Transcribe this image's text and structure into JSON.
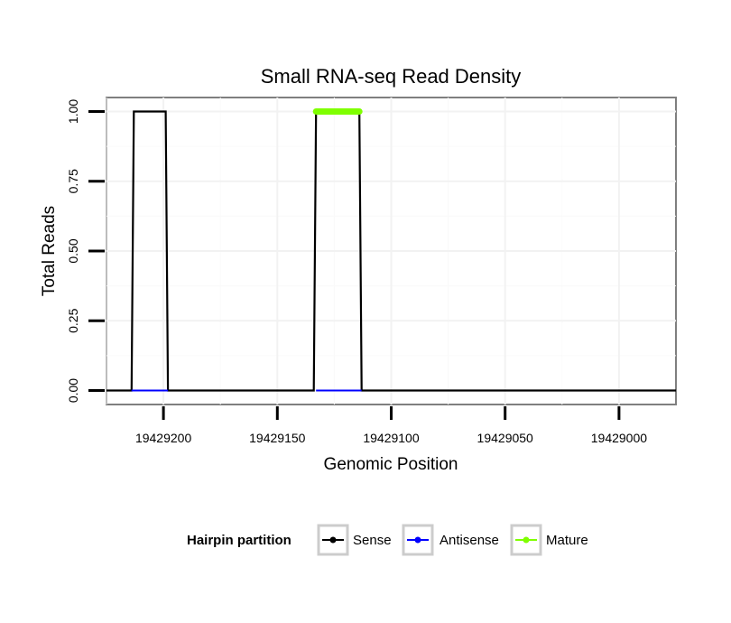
{
  "chart_data": {
    "type": "line",
    "title": "Small RNA-seq Read Density",
    "xlabel": "Genomic Position",
    "ylabel": "Total Reads",
    "x_reversed": true,
    "xlim": [
      19429225,
      19428975
    ],
    "ylim": [
      -0.05,
      1.05
    ],
    "x_ticks": [
      19429200,
      19429150,
      19429100,
      19429050,
      19429000
    ],
    "x_tick_labels": [
      "19429200",
      "19429150",
      "19429100",
      "19429050",
      "19429000"
    ],
    "y_ticks": [
      0,
      0.25,
      0.5,
      0.75,
      1
    ],
    "y_tick_labels": [
      "0.00",
      "0.25",
      "0.50",
      "0.75",
      "1.00"
    ],
    "grid": true,
    "series": [
      {
        "name": "Sense",
        "color": "#000000",
        "points": [
          [
            19429225,
            0
          ],
          [
            19429214,
            0
          ],
          [
            19429213,
            1
          ],
          [
            19429199,
            1
          ],
          [
            19429198,
            0
          ],
          [
            19429134,
            0
          ],
          [
            19429133,
            1
          ],
          [
            19429114,
            1
          ],
          [
            19429113,
            0
          ],
          [
            19428975,
            0
          ]
        ]
      },
      {
        "name": "Antisense",
        "color": "#0000ff",
        "points": [
          [
            19429214,
            0
          ],
          [
            19429198,
            0
          ],
          [
            19429133,
            0
          ],
          [
            19429113,
            0
          ]
        ]
      },
      {
        "name": "Mature",
        "color": "#7fff00",
        "points": [
          [
            19429133,
            1
          ],
          [
            19429114,
            1
          ]
        ]
      }
    ],
    "legend": {
      "title": "Hairpin partition",
      "position": "bottom",
      "entries": [
        "Sense",
        "Antisense",
        "Mature"
      ]
    }
  }
}
